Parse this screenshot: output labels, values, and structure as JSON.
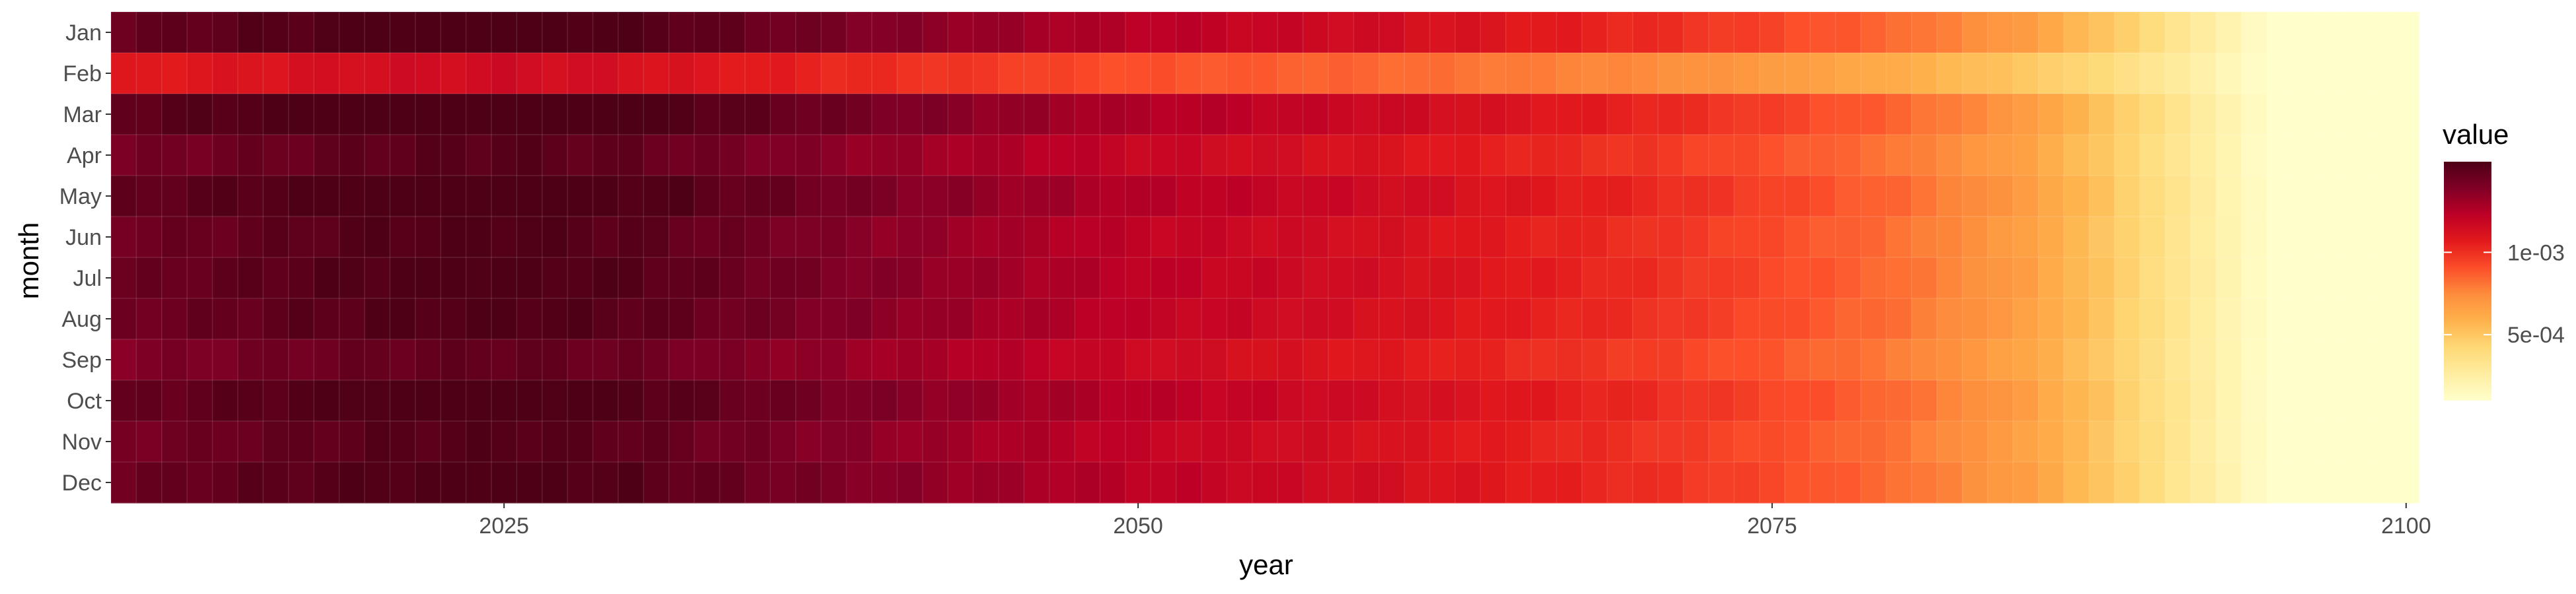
{
  "chart_data": {
    "type": "heatmap",
    "title": "",
    "xlabel": "year",
    "ylabel": "month",
    "x_start": 2010,
    "x_end": 2100,
    "xlim": [
      2009.5,
      2100.5
    ],
    "x_ticks": [
      2025,
      2050,
      2075,
      2100
    ],
    "x_tick_labels": [
      "2025",
      "2050",
      "2075",
      "2100"
    ],
    "months": [
      "Jan",
      "Feb",
      "Mar",
      "Apr",
      "May",
      "Jun",
      "Jul",
      "Aug",
      "Sep",
      "Oct",
      "Nov",
      "Dec"
    ],
    "month_offsets": [
      0.04,
      -0.24,
      0.06,
      0.0,
      0.05,
      0.02,
      0.03,
      0.02,
      -0.02,
      0.04,
      0.01,
      0.03
    ],
    "value_profile": {
      "years": [
        2010,
        2020,
        2025,
        2030,
        2040,
        2050,
        2060,
        2070,
        2075,
        2080,
        2085,
        2088,
        2090,
        2093,
        2095,
        2100
      ],
      "values": [
        0.00141,
        0.0015,
        0.00152,
        0.00148,
        0.00133,
        0.00119,
        0.0011,
        0.00098,
        0.0009,
        0.0008,
        0.00065,
        0.0005,
        0.00038,
        0.0002,
        8e-05,
        4e-05
      ]
    },
    "legend": {
      "title": "value",
      "placement": "right",
      "range": [
        0.0001,
        0.00155
      ],
      "breaks": [
        0.001,
        0.0005
      ],
      "break_labels": [
        "1e-03",
        "5e-04"
      ]
    },
    "colors": [
      "#ffffcc",
      "#ffeda0",
      "#fed976",
      "#feb24c",
      "#fd8d3c",
      "#fc4e2a",
      "#e31a1c",
      "#bd0026",
      "#800026",
      "#4d0016"
    ],
    "grid": true,
    "background": "#ffffff"
  }
}
